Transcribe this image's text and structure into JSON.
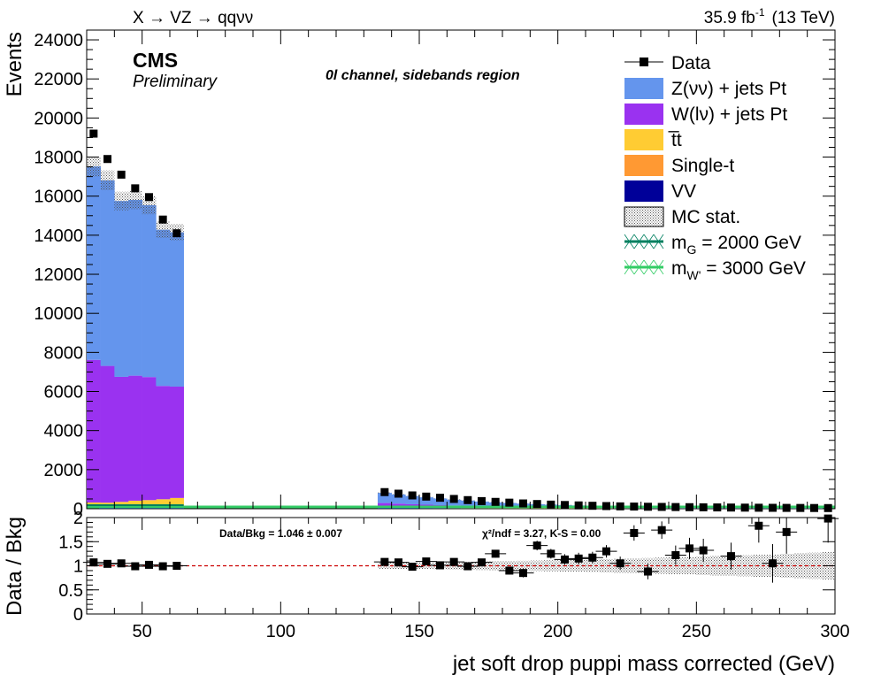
{
  "header": {
    "process": "X → VZ → qqνν",
    "lumi": "35.9 fb",
    "lumi_sup": "-1",
    "energy": "(13 TeV)",
    "cms": "CMS",
    "preliminary": "Preliminary",
    "channel": "0l channel, sidebands region"
  },
  "ratio_text": {
    "data_bkg": "Data/Bkg = 1.046 ± 0.007",
    "chi2": "χ²/ndf = 3.27,   K-S = 0.00"
  },
  "colors": {
    "zvv": "#6495ed",
    "wlv": "#9a32f0",
    "ttbar": "#ffcc33",
    "single_t": "#ff9933",
    "vv": "#000099",
    "signal_g": "#008060",
    "signal_w": "#33cc66",
    "ref_line": "#cc0000"
  },
  "chart_data": [
    {
      "type": "bar",
      "stacked": true,
      "xlabel": "jet soft drop puppi mass corrected (GeV)",
      "ylabel": "Events",
      "xlim": [
        30,
        300
      ],
      "ylim": [
        0,
        24500
      ],
      "x_ticks": [
        50,
        100,
        150,
        200,
        250,
        300
      ],
      "y_ticks": [
        0,
        2000,
        4000,
        6000,
        8000,
        10000,
        12000,
        14000,
        16000,
        18000,
        20000,
        22000,
        24000
      ],
      "bin_width": 5,
      "x_bins_low": [
        30,
        35,
        40,
        45,
        50,
        55,
        60,
        135,
        140,
        145,
        150,
        155,
        160,
        165,
        170,
        175,
        180,
        185,
        190,
        195,
        200,
        205,
        210,
        215,
        220,
        225,
        230,
        235,
        240,
        245,
        250,
        255,
        260,
        265,
        270,
        275,
        280,
        285,
        290,
        295
      ],
      "series": [
        {
          "name": "VV",
          "values": [
            120,
            110,
            100,
            110,
            100,
            95,
            90,
            30,
            25,
            22,
            20,
            18,
            16,
            14,
            12,
            11,
            10,
            9,
            8,
            7,
            6,
            6,
            5,
            5,
            4,
            4,
            4,
            3,
            3,
            3,
            3,
            2,
            2,
            2,
            2,
            2,
            2,
            1,
            1,
            1
          ]
        },
        {
          "name": "Single-t",
          "values": [
            70,
            70,
            70,
            80,
            80,
            80,
            80,
            20,
            18,
            16,
            14,
            12,
            10,
            9,
            8,
            7,
            6,
            5,
            5,
            4,
            4,
            3,
            3,
            3,
            2,
            2,
            2,
            2,
            2,
            1,
            1,
            1,
            1,
            1,
            1,
            1,
            1,
            1,
            1,
            1
          ]
        },
        {
          "name": "t̅t",
          "values": [
            130,
            130,
            180,
            220,
            260,
            310,
            380,
            60,
            55,
            50,
            45,
            40,
            36,
            32,
            28,
            25,
            22,
            20,
            18,
            16,
            14,
            12,
            11,
            10,
            9,
            8,
            7,
            6,
            6,
            5,
            5,
            4,
            4,
            4,
            3,
            3,
            3,
            3,
            2,
            2
          ]
        },
        {
          "name": "W(lν) + jets Pt",
          "values": [
            7300,
            7000,
            6400,
            6400,
            6300,
            5800,
            5700,
            180,
            160,
            140,
            125,
            110,
            100,
            90,
            80,
            72,
            65,
            58,
            52,
            47,
            42,
            38,
            34,
            31,
            28,
            25,
            23,
            21,
            19,
            17,
            15,
            14,
            13,
            12,
            11,
            10,
            9,
            8,
            8,
            7
          ]
        },
        {
          "name": "Z(νν) + jets Pt",
          "values": [
            9900,
            9500,
            9000,
            9000,
            8800,
            8000,
            7900,
            520,
            470,
            420,
            380,
            340,
            300,
            270,
            240,
            210,
            190,
            170,
            150,
            135,
            120,
            108,
            98,
            88,
            80,
            72,
            65,
            58,
            53,
            48,
            44,
            40,
            36,
            33,
            30,
            27,
            25,
            23,
            21,
            19
          ]
        }
      ],
      "data": {
        "name": "Data",
        "values": [
          19200,
          17900,
          17100,
          16400,
          15950,
          14800,
          14100,
          850,
          770,
          680,
          620,
          560,
          500,
          440,
          390,
          350,
          310,
          270,
          240,
          210,
          190,
          170,
          150,
          135,
          120,
          110,
          100,
          92,
          85,
          78,
          72,
          66,
          60,
          55,
          50,
          46,
          42,
          39,
          36,
          33
        ]
      },
      "signals": [
        {
          "name": "m_G = 2000 GeV"
        },
        {
          "name": "m_W' = 3000 GeV"
        }
      ],
      "legend": [
        "Data",
        "Z(νν) + jets Pt",
        "W(lν) + jets Pt",
        "t̅t",
        "Single-t",
        "VV",
        "MC stat.",
        "m_G = 2000 GeV",
        "m_W' = 3000 GeV"
      ],
      "legend_position": "top-right"
    },
    {
      "type": "scatter",
      "ylabel": "Data / Bkg",
      "xlim": [
        30,
        300
      ],
      "ylim": [
        0,
        2
      ],
      "y_ticks": [
        0,
        0.5,
        1,
        1.5,
        2
      ],
      "y_tick_labels": [
        "0",
        "0.5",
        "1",
        "1.5",
        "2"
      ],
      "reference_line": 1,
      "x": [
        32.5,
        37.5,
        42.5,
        47.5,
        52.5,
        57.5,
        62.5,
        137.5,
        142.5,
        147.5,
        152.5,
        157.5,
        162.5,
        167.5,
        172.5,
        177.5,
        182.5,
        187.5,
        192.5,
        197.5,
        202.5,
        207.5,
        212.5,
        217.5,
        222.5,
        227.5,
        232.5,
        237.5,
        242.5,
        247.5,
        252.5,
        262.5,
        272.5,
        277.5,
        282.5,
        297.5
      ],
      "y": [
        1.07,
        1.04,
        1.05,
        0.99,
        1.02,
        0.99,
        1.0,
        1.08,
        1.07,
        0.98,
        1.09,
        1.01,
        1.08,
        0.99,
        1.07,
        1.25,
        0.9,
        0.85,
        1.42,
        1.25,
        1.13,
        1.15,
        1.17,
        1.3,
        1.05,
        1.68,
        0.88,
        1.74,
        1.22,
        1.36,
        1.32,
        1.2,
        1.83,
        1.05,
        1.7,
        1.98
      ],
      "err": [
        0.01,
        0.01,
        0.01,
        0.01,
        0.01,
        0.01,
        0.01,
        0.05,
        0.05,
        0.05,
        0.06,
        0.06,
        0.06,
        0.07,
        0.07,
        0.08,
        0.08,
        0.09,
        0.1,
        0.1,
        0.11,
        0.12,
        0.12,
        0.13,
        0.14,
        0.16,
        0.16,
        0.18,
        0.2,
        0.22,
        0.24,
        0.28,
        0.35,
        0.4,
        0.45,
        0.5
      ]
    }
  ]
}
